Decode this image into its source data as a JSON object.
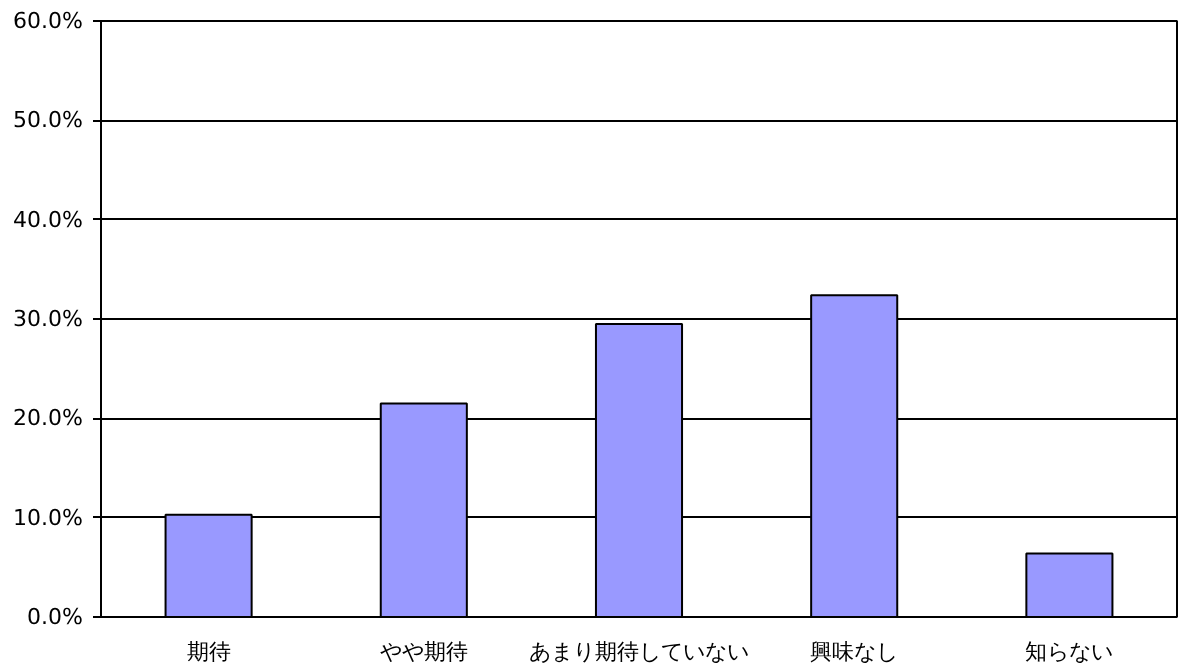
{
  "chart_data": {
    "type": "bar",
    "categories": [
      "期待",
      "やや期待",
      "あまり期待していない",
      "興味なし",
      "知らない"
    ],
    "values": [
      10.3,
      21.5,
      29.5,
      32.4,
      6.4
    ],
    "color": "#9999ff",
    "ylim": [
      0,
      60
    ],
    "yticks": [
      {
        "value": 0,
        "label": "0.0%"
      },
      {
        "value": 10,
        "label": "10.0%"
      },
      {
        "value": 20,
        "label": "20.0%"
      },
      {
        "value": 30,
        "label": "30.0%"
      },
      {
        "value": 40,
        "label": "40.0%"
      },
      {
        "value": 50,
        "label": "50.0%"
      },
      {
        "value": 60,
        "label": "60.0%"
      }
    ],
    "grid": "y"
  }
}
